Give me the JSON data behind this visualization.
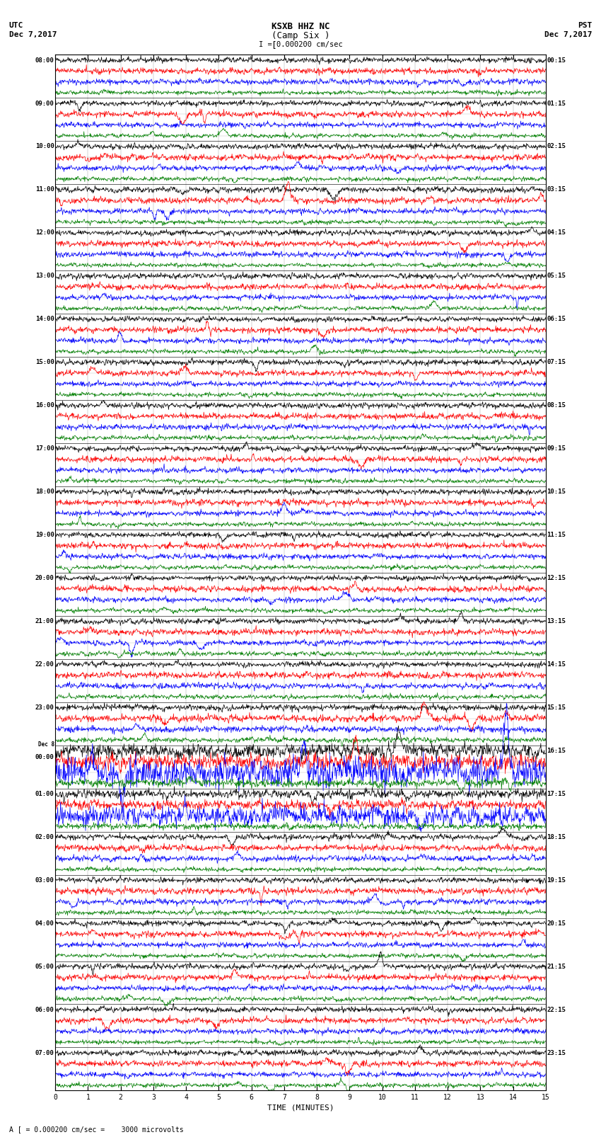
{
  "title_line1": "KSXB HHZ NC",
  "title_line2": "(Camp Six )",
  "scale_label": "I = 0.000200 cm/sec",
  "utc_label": "UTC",
  "pst_label": "PST",
  "date_left": "Dec 7,2017",
  "date_right": "Dec 7,2017",
  "bottom_note": "A [ = 0.000200 cm/sec =    3000 microvolts",
  "xlabel": "TIME (MINUTES)",
  "xlim": [
    0,
    15
  ],
  "xticks": [
    0,
    1,
    2,
    3,
    4,
    5,
    6,
    7,
    8,
    9,
    10,
    11,
    12,
    13,
    14,
    15
  ],
  "utc_times": [
    "08:00",
    "09:00",
    "10:00",
    "11:00",
    "12:00",
    "13:00",
    "14:00",
    "15:00",
    "16:00",
    "17:00",
    "18:00",
    "19:00",
    "20:00",
    "21:00",
    "22:00",
    "23:00",
    "Dec 8\n00:00",
    "01:00",
    "02:00",
    "03:00",
    "04:00",
    "05:00",
    "06:00",
    "07:00"
  ],
  "pst_times": [
    "00:15",
    "01:15",
    "02:15",
    "03:15",
    "04:15",
    "05:15",
    "06:15",
    "07:15",
    "08:15",
    "09:15",
    "10:15",
    "11:15",
    "12:15",
    "13:15",
    "14:15",
    "15:15",
    "16:15",
    "17:15",
    "18:15",
    "19:15",
    "20:15",
    "21:15",
    "22:15",
    "23:15"
  ],
  "n_groups": 24,
  "n_traces_per_group": 4,
  "trace_colors": [
    "black",
    "red",
    "blue",
    "green"
  ],
  "trace_amplitude": [
    0.28,
    0.32,
    0.28,
    0.22
  ],
  "bg_color": "white",
  "trace_linewidth": 0.5,
  "fig_width": 8.5,
  "fig_height": 16.13,
  "dpi": 100,
  "earthquake_group": 16,
  "earthquake_amp_factors": [
    2.5,
    2.5,
    5.0,
    2.0
  ],
  "earthquake_group2": 17,
  "earthquake2_amp_factors": [
    1.5,
    1.5,
    3.5,
    1.5
  ]
}
